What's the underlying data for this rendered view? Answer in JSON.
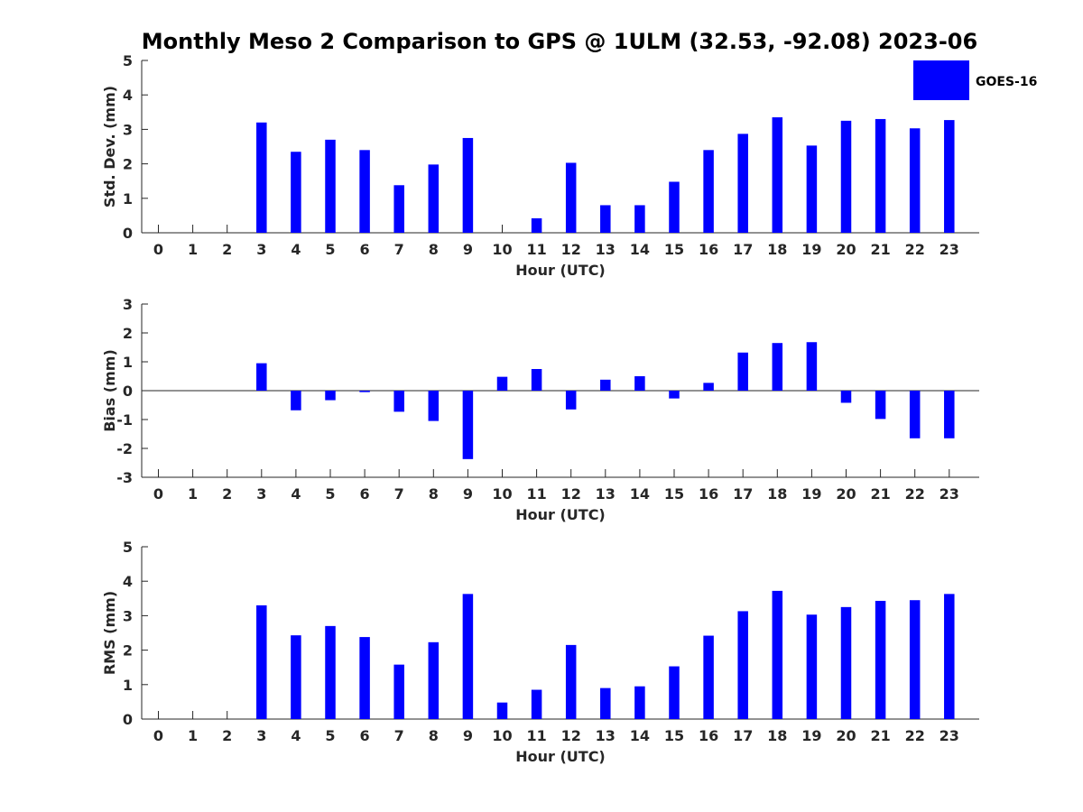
{
  "chart_data": {
    "title": "Monthly Meso 2 Comparison to GPS @ 1ULM (32.53, -92.08) 2023-06",
    "legend": {
      "label": "GOES-16",
      "color": "#0000ff",
      "placement": "top-right"
    },
    "bar_color": "#0000ff",
    "panels": [
      {
        "type": "bar",
        "xlabel": "Hour (UTC)",
        "ylabel": "Std. Dev. (mm)",
        "ylim": [
          0,
          5
        ],
        "yticks": [
          0,
          1,
          2,
          3,
          4,
          5
        ],
        "categories": [
          "0",
          "1",
          "2",
          "3",
          "4",
          "5",
          "6",
          "7",
          "8",
          "9",
          "10",
          "11",
          "12",
          "13",
          "14",
          "15",
          "16",
          "17",
          "18",
          "19",
          "20",
          "21",
          "22",
          "23"
        ],
        "values": [
          null,
          null,
          null,
          3.2,
          2.35,
          2.7,
          2.4,
          1.38,
          1.98,
          2.75,
          null,
          0.42,
          2.03,
          0.8,
          0.8,
          1.48,
          2.4,
          2.87,
          3.35,
          2.53,
          3.25,
          3.3,
          3.03,
          3.27
        ]
      },
      {
        "type": "bar",
        "xlabel": "Hour (UTC)",
        "ylabel": "Bias (mm)",
        "ylim": [
          -3,
          3
        ],
        "yticks": [
          -3,
          -2,
          -1,
          0,
          1,
          2,
          3
        ],
        "categories": [
          "0",
          "1",
          "2",
          "3",
          "4",
          "5",
          "6",
          "7",
          "8",
          "9",
          "10",
          "11",
          "12",
          "13",
          "14",
          "15",
          "16",
          "17",
          "18",
          "19",
          "20",
          "21",
          "22",
          "23"
        ],
        "values": [
          null,
          null,
          null,
          0.95,
          -0.68,
          -0.33,
          -0.05,
          -0.73,
          -1.05,
          -2.37,
          0.48,
          0.75,
          -0.65,
          0.38,
          0.5,
          -0.27,
          0.27,
          1.32,
          1.65,
          1.68,
          -0.42,
          -0.98,
          -1.65,
          -1.65
        ]
      },
      {
        "type": "bar",
        "xlabel": "Hour (UTC)",
        "ylabel": "RMS (mm)",
        "ylim": [
          0,
          5
        ],
        "yticks": [
          0,
          1,
          2,
          3,
          4,
          5
        ],
        "categories": [
          "0",
          "1",
          "2",
          "3",
          "4",
          "5",
          "6",
          "7",
          "8",
          "9",
          "10",
          "11",
          "12",
          "13",
          "14",
          "15",
          "16",
          "17",
          "18",
          "19",
          "20",
          "21",
          "22",
          "23"
        ],
        "values": [
          null,
          null,
          null,
          3.3,
          2.43,
          2.7,
          2.38,
          1.58,
          2.23,
          3.63,
          0.48,
          0.85,
          2.15,
          0.9,
          0.95,
          1.53,
          2.42,
          3.13,
          3.72,
          3.03,
          3.25,
          3.43,
          3.45,
          3.63
        ]
      }
    ]
  }
}
